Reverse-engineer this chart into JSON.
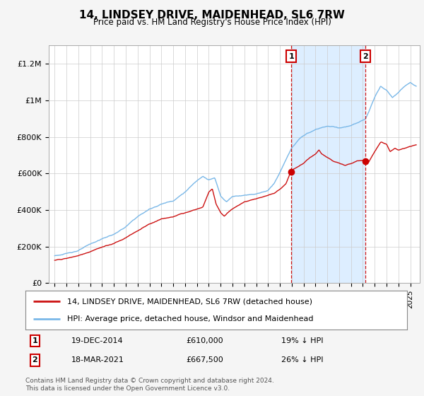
{
  "title": "14, LINDSEY DRIVE, MAIDENHEAD, SL6 7RW",
  "subtitle": "Price paid vs. HM Land Registry's House Price Index (HPI)",
  "ylim": [
    0,
    1300000
  ],
  "yticks": [
    0,
    200000,
    400000,
    600000,
    800000,
    1000000,
    1200000
  ],
  "ytick_labels": [
    "£0",
    "£200K",
    "£400K",
    "£600K",
    "£800K",
    "£1M",
    "£1.2M"
  ],
  "hpi_color": "#7ab8e8",
  "price_color": "#cc1111",
  "marker1_x": 2014.96,
  "marker2_x": 2021.21,
  "marker1_price_val": 610000,
  "marker2_price_val": 667500,
  "marker1_date": "19-DEC-2014",
  "marker1_price": "£610,000",
  "marker1_hpi": "19% ↓ HPI",
  "marker2_date": "18-MAR-2021",
  "marker2_price": "£667,500",
  "marker2_hpi": "26% ↓ HPI",
  "legend_line1": "14, LINDSEY DRIVE, MAIDENHEAD, SL6 7RW (detached house)",
  "legend_line2": "HPI: Average price, detached house, Windsor and Maidenhead",
  "footnote": "Contains HM Land Registry data © Crown copyright and database right 2024.\nThis data is licensed under the Open Government Licence v3.0.",
  "fig_bg_color": "#f5f5f5",
  "plot_bg_color": "#ffffff",
  "shade_color": "#ddeeff",
  "xmin": 1994.5,
  "xmax": 2025.8
}
